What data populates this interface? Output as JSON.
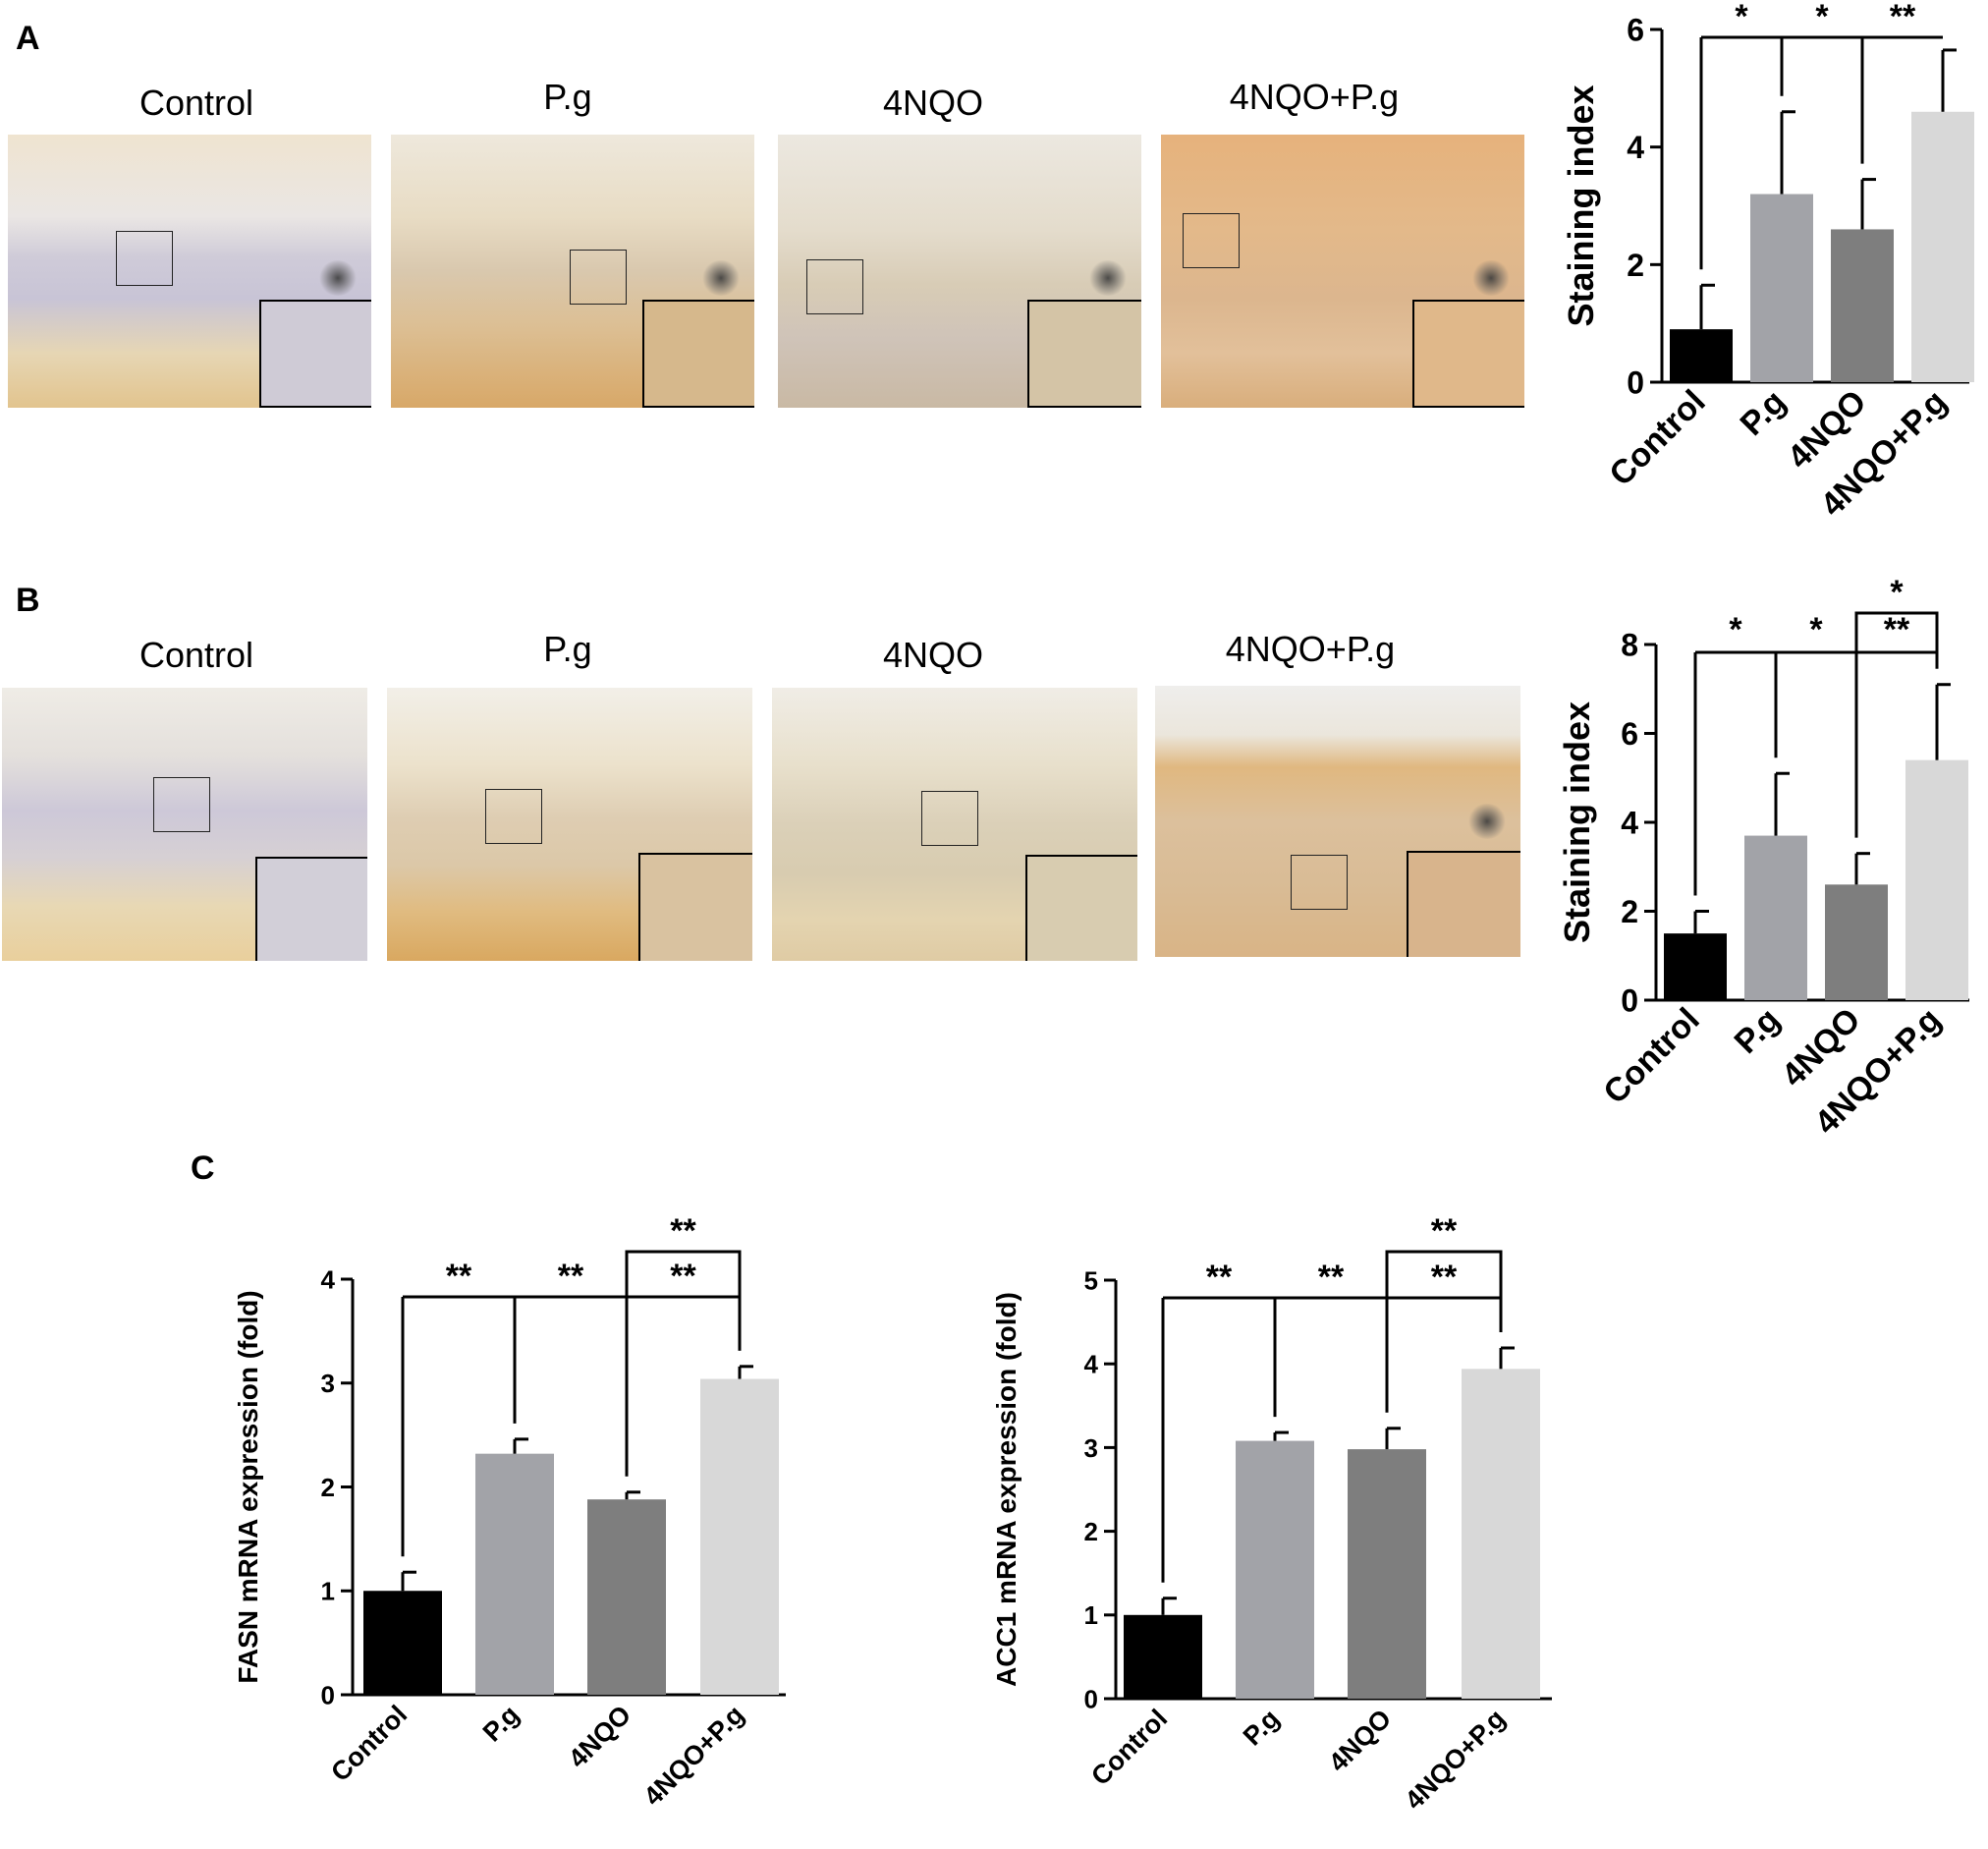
{
  "colors": {
    "Control": "#000000",
    "P.g": "#a2a3a8",
    "4NQO": "#7e7e7e",
    "4NQO+P.g": "#d8d8d8"
  },
  "panels": {
    "A": {
      "letter": "A",
      "image_labels": [
        "Control",
        "P.g",
        "4NQO",
        "4NQO+P.g"
      ]
    },
    "B": {
      "letter": "B",
      "image_labels": [
        "Control",
        "P.g",
        "4NQO",
        "4NQO+P.g"
      ]
    },
    "C": {
      "letter": "C"
    }
  },
  "chart_data": [
    {
      "id": "A-staining",
      "type": "bar",
      "categories": [
        "Control",
        "P.g",
        "4NQO",
        "4NQO+P.g"
      ],
      "values": [
        0.9,
        3.2,
        2.6,
        4.6
      ],
      "errors": [
        0.75,
        1.4,
        0.85,
        1.05
      ],
      "xlabel": "",
      "ylabel": "Staining index",
      "ylim": [
        0,
        6
      ],
      "yticks": [
        "0",
        "2",
        "4",
        "6"
      ],
      "significance": [
        "*",
        "*",
        "**"
      ],
      "grid": false
    },
    {
      "id": "B-staining",
      "type": "bar",
      "categories": [
        "Control",
        "P.g",
        "4NQO",
        "4NQO+P.g"
      ],
      "values": [
        1.5,
        3.7,
        2.6,
        5.4
      ],
      "errors": [
        0.5,
        1.4,
        0.7,
        1.7
      ],
      "xlabel": "",
      "ylabel": "Staining index",
      "ylim": [
        0,
        8
      ],
      "yticks": [
        "0",
        "2",
        "4",
        "6",
        "8"
      ],
      "significance": [
        "*",
        "*",
        "**",
        "*"
      ],
      "grid": false
    },
    {
      "id": "C-FASN",
      "type": "bar",
      "categories": [
        "Control",
        "P.g",
        "4NQO",
        "4NQO+P.g"
      ],
      "values": [
        1.0,
        2.32,
        1.88,
        3.04
      ],
      "errors": [
        0.18,
        0.14,
        0.07,
        0.12
      ],
      "xlabel": "",
      "ylabel": "FASN mRNA expression (fold)",
      "ylim": [
        0,
        4
      ],
      "yticks": [
        "0",
        "1",
        "2",
        "3",
        "4"
      ],
      "significance": [
        "**",
        "**",
        "**",
        "**"
      ],
      "grid": false
    },
    {
      "id": "C-ACC1",
      "type": "bar",
      "categories": [
        "Control",
        "P.g",
        "4NQO",
        "4NQO+P.g"
      ],
      "values": [
        1.0,
        3.08,
        2.98,
        3.94
      ],
      "errors": [
        0.2,
        0.1,
        0.25,
        0.25
      ],
      "xlabel": "",
      "ylabel": "ACC1 mRNA expression (fold)",
      "ylim": [
        0,
        5
      ],
      "yticks": [
        "0",
        "1",
        "2",
        "3",
        "4",
        "5"
      ],
      "significance": [
        "**",
        "**",
        "**",
        "**"
      ],
      "grid": false
    }
  ]
}
